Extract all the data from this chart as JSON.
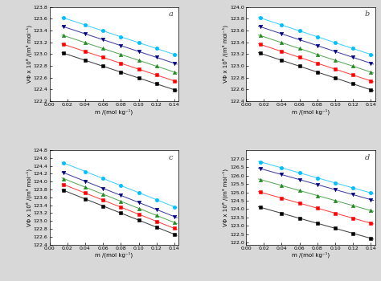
{
  "panels": [
    {
      "label": "a",
      "ylim": [
        122.2,
        123.8
      ],
      "yticks": [
        122.2,
        122.4,
        122.6,
        122.8,
        123.0,
        123.2,
        123.4,
        123.6,
        123.8
      ],
      "series": [
        {
          "color": "#00bfff",
          "marker": "o",
          "intercept": 123.695,
          "slope": -5.0
        },
        {
          "color": "#000080",
          "marker": "v",
          "intercept": 123.545,
          "slope": -5.0
        },
        {
          "color": "#228B22",
          "marker": "^",
          "intercept": 123.395,
          "slope": -5.0
        },
        {
          "color": "#ff0000",
          "marker": "s",
          "intercept": 123.245,
          "slope": -5.0
        },
        {
          "color": "#000000",
          "marker": "s",
          "intercept": 123.095,
          "slope": -5.0
        }
      ]
    },
    {
      "label": "b",
      "ylim": [
        122.4,
        124.0
      ],
      "yticks": [
        122.4,
        122.6,
        122.8,
        123.0,
        123.2,
        123.4,
        123.6,
        123.8,
        124.0
      ],
      "series": [
        {
          "color": "#00bfff",
          "marker": "o",
          "intercept": 123.895,
          "slope": -5.0
        },
        {
          "color": "#000080",
          "marker": "v",
          "intercept": 123.745,
          "slope": -5.0
        },
        {
          "color": "#228B22",
          "marker": "^",
          "intercept": 123.595,
          "slope": -5.0
        },
        {
          "color": "#ff0000",
          "marker": "s",
          "intercept": 123.445,
          "slope": -5.0
        },
        {
          "color": "#000000",
          "marker": "s",
          "intercept": 123.295,
          "slope": -5.0
        }
      ]
    },
    {
      "label": "c",
      "ylim": [
        122.4,
        124.8
      ],
      "yticks": [
        122.4,
        122.6,
        122.8,
        123.0,
        123.2,
        123.4,
        123.6,
        123.8,
        124.0,
        124.2,
        124.4,
        124.6,
        124.8
      ],
      "series": [
        {
          "color": "#00bfff",
          "marker": "o",
          "intercept": 124.62,
          "slope": -9.0
        },
        {
          "color": "#000080",
          "marker": "v",
          "intercept": 124.37,
          "slope": -9.0
        },
        {
          "color": "#228B22",
          "marker": "^",
          "intercept": 124.22,
          "slope": -9.0
        },
        {
          "color": "#ff0000",
          "marker": "s",
          "intercept": 124.07,
          "slope": -9.0
        },
        {
          "color": "#000000",
          "marker": "s",
          "intercept": 123.92,
          "slope": -9.0
        }
      ]
    },
    {
      "label": "d",
      "ylim": [
        121.9,
        127.5
      ],
      "yticks": [
        122.0,
        122.5,
        123.0,
        123.5,
        124.0,
        124.5,
        125.0,
        125.5,
        126.0,
        126.5,
        127.0
      ],
      "series": [
        {
          "color": "#00bfff",
          "marker": "o",
          "intercept": 127.05,
          "slope": -14.9
        },
        {
          "color": "#000080",
          "marker": "v",
          "intercept": 126.65,
          "slope": -14.9
        },
        {
          "color": "#228B22",
          "marker": "^",
          "intercept": 126.0,
          "slope": -14.9
        },
        {
          "color": "#ff0000",
          "marker": "s",
          "intercept": 125.25,
          "slope": -14.9
        },
        {
          "color": "#000000",
          "marker": "s",
          "intercept": 124.35,
          "slope": -14.9
        }
      ]
    }
  ],
  "x_data": [
    0.016,
    0.04,
    0.06,
    0.08,
    0.1,
    0.12,
    0.14
  ],
  "xlabel": "m /(mol kg⁻¹)",
  "ylabel": "VΦ x 10⁶ /(m³ mol⁻¹)",
  "background_color": "#d8d8d8",
  "plot_bg_color": "#ffffff",
  "fig_width": 4.74,
  "fig_height": 3.5,
  "dpi": 100
}
